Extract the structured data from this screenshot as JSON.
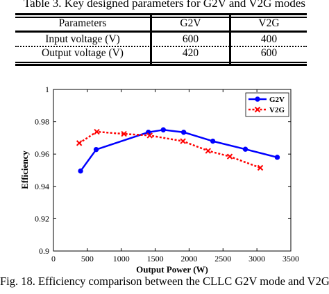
{
  "table": {
    "caption": "Table 3. Key designed parameters for G2V and V2G modes",
    "headers": [
      "Parameters",
      "G2V",
      "V2G"
    ],
    "rows": [
      [
        "Input voltage (V)",
        "600",
        "400"
      ],
      [
        "Output voltage (V)",
        "420",
        "600"
      ]
    ]
  },
  "figure_caption": "Fig. 18. Efficiency comparison between the CLLC G2V mode and V2G",
  "chart_data": {
    "type": "line",
    "title": "",
    "xlabel": "Output Power (W)",
    "ylabel": "Efficiency",
    "xlim": [
      0,
      3500
    ],
    "ylim": [
      0.9,
      1.0
    ],
    "x_ticks": [
      0,
      500,
      1000,
      1500,
      2000,
      2500,
      3000,
      3500
    ],
    "y_ticks": [
      0.9,
      0.92,
      0.94,
      0.96,
      0.98,
      1
    ],
    "x_tick_labels": [
      "0",
      "500",
      "1000",
      "1500",
      "2000",
      "2500",
      "3000",
      "3500"
    ],
    "y_tick_labels": [
      "0.9",
      "0.92",
      "0.94",
      "0.96",
      "0.98",
      "1"
    ],
    "legend_position": "top-right",
    "grid": false,
    "series": [
      {
        "name": "G2V",
        "color": "#0000ff",
        "style": "solid",
        "marker": "circle",
        "x": [
          400,
          630,
          1400,
          1620,
          1920,
          2350,
          2830,
          3300
        ],
        "y": [
          0.9495,
          0.9628,
          0.9735,
          0.975,
          0.9735,
          0.968,
          0.963,
          0.958
        ]
      },
      {
        "name": "V2G",
        "color": "#ff0000",
        "style": "dotted",
        "marker": "x",
        "x": [
          380,
          640,
          1040,
          1420,
          1910,
          2280,
          2600,
          3050
        ],
        "y": [
          0.9668,
          0.9738,
          0.9725,
          0.9715,
          0.968,
          0.962,
          0.9585,
          0.9515
        ]
      }
    ]
  }
}
